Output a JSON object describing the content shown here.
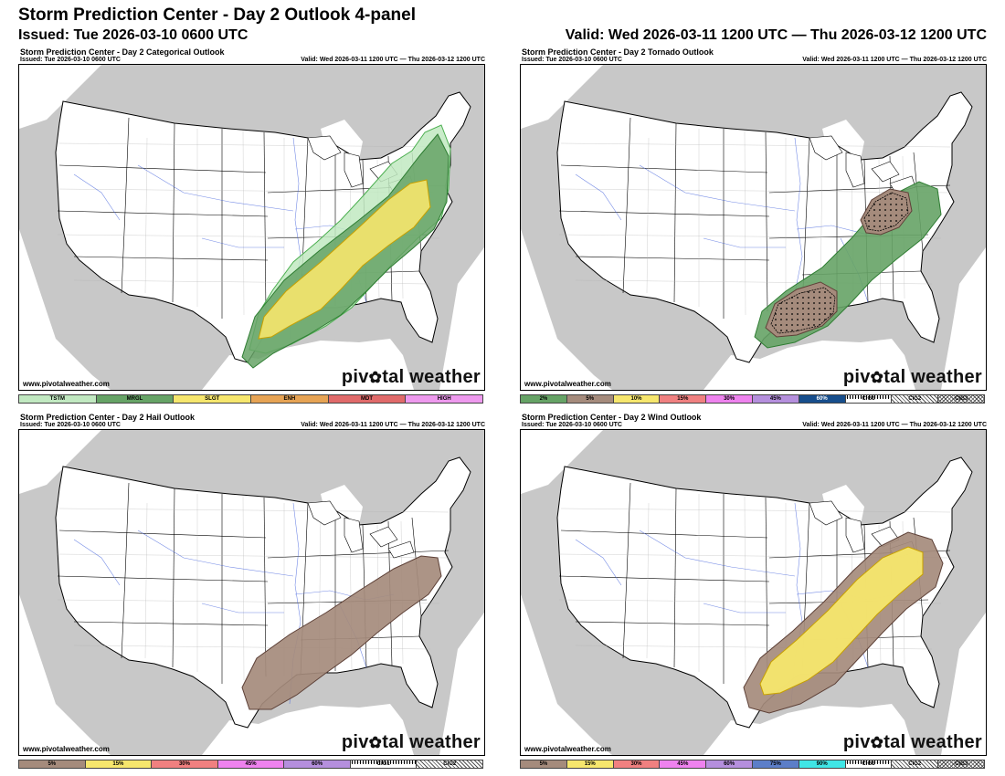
{
  "header": {
    "title": "Storm Prediction Center - Day 2 Outlook 4-panel",
    "issued": "Issued: Tue 2026-03-10 0600 UTC",
    "valid": "Valid: Wed 2026-03-11 1200 UTC — Thu 2026-03-12 1200 UTC"
  },
  "panels": [
    {
      "title": "Storm Prediction Center - Day 2 Categorical Outlook",
      "issued": "Issued: Tue 2026-03-10 0600 UTC",
      "valid": "Valid: Wed 2026-03-11 1200 UTC — Thu 2026-03-12 1200 UTC",
      "site": "www.pivotalweather.com",
      "brand": "pivotal weather",
      "legend": [
        {
          "label": "TSTM",
          "color": "#c1e9c1"
        },
        {
          "label": "MRGL",
          "color": "#66a366"
        },
        {
          "label": "SLGT",
          "color": "#f6e66d"
        },
        {
          "label": "ENH",
          "color": "#e6a354"
        },
        {
          "label": "MDT",
          "color": "#e06a6a"
        },
        {
          "label": "HIGH",
          "color": "#ee99ee"
        }
      ]
    },
    {
      "title": "Storm Prediction Center - Day 2 Tornado Outlook",
      "issued": "Issued: Tue 2026-03-10 0600 UTC",
      "valid": "Valid: Wed 2026-03-11 1200 UTC — Thu 2026-03-12 1200 UTC",
      "site": "www.pivotalweather.com",
      "brand": "pivotal weather",
      "legend": [
        {
          "label": "2%",
          "color": "#66a366"
        },
        {
          "label": "5%",
          "color": "#a58b7c"
        },
        {
          "label": "10%",
          "color": "#f6e66d"
        },
        {
          "label": "15%",
          "color": "#f08080"
        },
        {
          "label": "30%",
          "color": "#ee82ee"
        },
        {
          "label": "45%",
          "color": "#b58fdd"
        },
        {
          "label": "60%",
          "color": "#174e8c"
        },
        {
          "label": "CIG1",
          "color": "dots"
        },
        {
          "label": "CIG2",
          "color": "hatch"
        },
        {
          "label": "CIG3",
          "color": "xhatch"
        }
      ]
    },
    {
      "title": "Storm Prediction Center - Day 2 Hail Outlook",
      "issued": "Issued: Tue 2026-03-10 0600 UTC",
      "valid": "Valid: Wed 2026-03-11 1200 UTC — Thu 2026-03-12 1200 UTC",
      "site": "www.pivotalweather.com",
      "brand": "pivotal weather",
      "legend": [
        {
          "label": "5%",
          "color": "#a58b7c"
        },
        {
          "label": "15%",
          "color": "#f6e66d"
        },
        {
          "label": "30%",
          "color": "#f08080"
        },
        {
          "label": "45%",
          "color": "#ee82ee"
        },
        {
          "label": "60%",
          "color": "#b58fdd"
        },
        {
          "label": "CIG1",
          "color": "dots"
        },
        {
          "label": "CIG2",
          "color": "hatch"
        }
      ]
    },
    {
      "title": "Storm Prediction Center - Day 2 Wind Outlook",
      "issued": "Issued: Tue 2026-03-10 0600 UTC",
      "valid": "Valid: Wed 2026-03-11 1200 UTC — Thu 2026-03-12 1200 UTC",
      "site": "www.pivotalweather.com",
      "brand": "pivotal weather",
      "legend": [
        {
          "label": "5%",
          "color": "#a58b7c"
        },
        {
          "label": "15%",
          "color": "#f6e66d"
        },
        {
          "label": "30%",
          "color": "#f08080"
        },
        {
          "label": "45%",
          "color": "#ee82ee"
        },
        {
          "label": "60%",
          "color": "#b58fdd"
        },
        {
          "label": "75%",
          "color": "#5c7ec8"
        },
        {
          "label": "90%",
          "color": "#40e6e6"
        },
        {
          "label": "CIG1",
          "color": "dots"
        },
        {
          "label": "CIG2",
          "color": "hatch"
        },
        {
          "label": "CIG3",
          "color": "xhatch"
        }
      ]
    }
  ]
}
